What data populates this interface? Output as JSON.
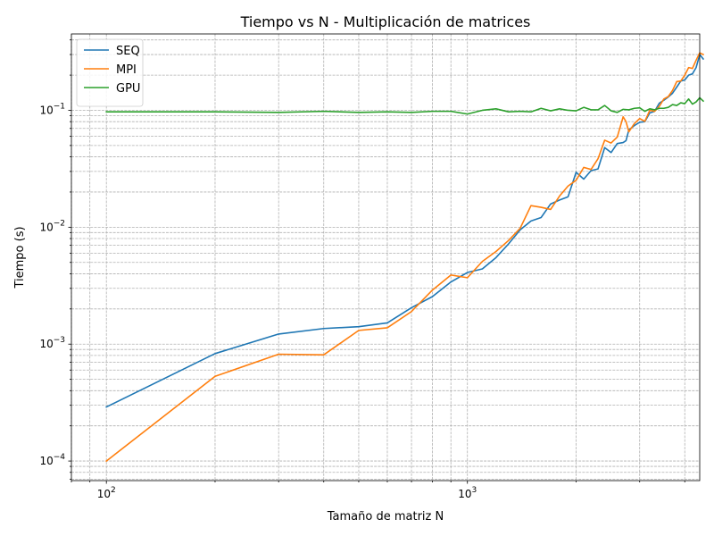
{
  "chart_data": {
    "type": "line",
    "title": "Tiempo vs N - Multiplicación de matrices",
    "xlabel": "Tamaño de matriz N",
    "ylabel": "Tiempo (s)",
    "xscale": "log",
    "yscale": "log",
    "xlim": [
      80,
      4400
    ],
    "ylim": [
      6.8e-05,
      0.45
    ],
    "grid": true,
    "grid_which": "both",
    "legend_position": "upper-left",
    "x_tick_labels": [
      {
        "value": 100,
        "base": "10",
        "exp": "2"
      },
      {
        "value": 1000,
        "base": "10",
        "exp": "3"
      }
    ],
    "y_tick_labels": [
      {
        "value": 0.0001,
        "base": "10",
        "exp": "−4"
      },
      {
        "value": 0.001,
        "base": "10",
        "exp": "−3"
      },
      {
        "value": 0.01,
        "base": "10",
        "exp": "−2"
      },
      {
        "value": 0.1,
        "base": "10",
        "exp": "−1"
      }
    ],
    "series": [
      {
        "name": "SEQ",
        "color": "#1f77b4",
        "points": [
          [
            100,
            0.00029
          ],
          [
            200,
            0.00083
          ],
          [
            300,
            0.00122
          ],
          [
            400,
            0.00136
          ],
          [
            500,
            0.00141
          ],
          [
            600,
            0.00152
          ],
          [
            700,
            0.00205
          ],
          [
            800,
            0.00255
          ],
          [
            900,
            0.0034
          ],
          [
            1000,
            0.0041
          ],
          [
            1100,
            0.0044
          ],
          [
            1200,
            0.0055
          ],
          [
            1300,
            0.0072
          ],
          [
            1400,
            0.0095
          ],
          [
            1500,
            0.0113
          ],
          [
            1600,
            0.0121
          ],
          [
            1700,
            0.0158
          ],
          [
            1800,
            0.0171
          ],
          [
            1900,
            0.0182
          ],
          [
            2000,
            0.0295
          ],
          [
            2100,
            0.0258
          ],
          [
            2200,
            0.0305
          ],
          [
            2300,
            0.0315
          ],
          [
            2400,
            0.048
          ],
          [
            2500,
            0.0435
          ],
          [
            2600,
            0.052
          ],
          [
            2700,
            0.053
          ],
          [
            2750,
            0.055
          ],
          [
            2800,
            0.068
          ],
          [
            2900,
            0.074
          ],
          [
            3000,
            0.079
          ],
          [
            3100,
            0.08
          ],
          [
            3200,
            0.095
          ],
          [
            3300,
            0.098
          ],
          [
            3400,
            0.115
          ],
          [
            3500,
            0.122
          ],
          [
            3600,
            0.13
          ],
          [
            3700,
            0.14
          ],
          [
            3800,
            0.158
          ],
          [
            3900,
            0.178
          ],
          [
            4000,
            0.182
          ],
          [
            4100,
            0.2
          ],
          [
            4200,
            0.205
          ],
          [
            4300,
            0.232
          ],
          [
            4400,
            0.3
          ],
          [
            4500,
            0.275
          ]
        ]
      },
      {
        "name": "MPI",
        "color": "#ff7f0e",
        "points": [
          [
            100,
            0.0001
          ],
          [
            200,
            0.00053
          ],
          [
            300,
            0.00082
          ],
          [
            400,
            0.00081
          ],
          [
            500,
            0.00131
          ],
          [
            600,
            0.00138
          ],
          [
            700,
            0.0019
          ],
          [
            800,
            0.0029
          ],
          [
            900,
            0.0039
          ],
          [
            1000,
            0.0037
          ],
          [
            1100,
            0.0051
          ],
          [
            1200,
            0.0062
          ],
          [
            1300,
            0.0077
          ],
          [
            1400,
            0.0098
          ],
          [
            1500,
            0.0153
          ],
          [
            1600,
            0.0148
          ],
          [
            1700,
            0.0142
          ],
          [
            1800,
            0.0185
          ],
          [
            1900,
            0.0225
          ],
          [
            2000,
            0.0252
          ],
          [
            2100,
            0.0325
          ],
          [
            2200,
            0.0312
          ],
          [
            2300,
            0.0385
          ],
          [
            2400,
            0.0555
          ],
          [
            2500,
            0.0525
          ],
          [
            2600,
            0.059
          ],
          [
            2700,
            0.088
          ],
          [
            2750,
            0.08
          ],
          [
            2800,
            0.0655
          ],
          [
            2900,
            0.077
          ],
          [
            3000,
            0.085
          ],
          [
            3100,
            0.0805
          ],
          [
            3200,
            0.1
          ],
          [
            3300,
            0.098
          ],
          [
            3400,
            0.108
          ],
          [
            3500,
            0.125
          ],
          [
            3600,
            0.131
          ],
          [
            3700,
            0.148
          ],
          [
            3800,
            0.176
          ],
          [
            3900,
            0.178
          ],
          [
            4000,
            0.2
          ],
          [
            4100,
            0.232
          ],
          [
            4200,
            0.228
          ],
          [
            4300,
            0.268
          ],
          [
            4400,
            0.31
          ],
          [
            4500,
            0.3
          ]
        ]
      },
      {
        "name": "GPU",
        "color": "#2ca02c",
        "points": [
          [
            100,
            0.097
          ],
          [
            200,
            0.097
          ],
          [
            300,
            0.096
          ],
          [
            400,
            0.098
          ],
          [
            500,
            0.096
          ],
          [
            600,
            0.097
          ],
          [
            700,
            0.096
          ],
          [
            800,
            0.098
          ],
          [
            900,
            0.098
          ],
          [
            1000,
            0.093
          ],
          [
            1100,
            0.1
          ],
          [
            1200,
            0.103
          ],
          [
            1300,
            0.097
          ],
          [
            1400,
            0.098
          ],
          [
            1500,
            0.097
          ],
          [
            1600,
            0.104
          ],
          [
            1700,
            0.099
          ],
          [
            1800,
            0.103
          ],
          [
            1900,
            0.1
          ],
          [
            2000,
            0.099
          ],
          [
            2100,
            0.106
          ],
          [
            2200,
            0.101
          ],
          [
            2300,
            0.101
          ],
          [
            2400,
            0.11
          ],
          [
            2500,
            0.099
          ],
          [
            2600,
            0.096
          ],
          [
            2700,
            0.102
          ],
          [
            2800,
            0.101
          ],
          [
            2900,
            0.104
          ],
          [
            3000,
            0.105
          ],
          [
            3100,
            0.098
          ],
          [
            3200,
            0.103
          ],
          [
            3300,
            0.101
          ],
          [
            3400,
            0.104
          ],
          [
            3500,
            0.104
          ],
          [
            3600,
            0.106
          ],
          [
            3700,
            0.112
          ],
          [
            3800,
            0.11
          ],
          [
            3900,
            0.116
          ],
          [
            4000,
            0.114
          ],
          [
            4100,
            0.125
          ],
          [
            4200,
            0.113
          ],
          [
            4300,
            0.118
          ],
          [
            4400,
            0.128
          ],
          [
            4500,
            0.12
          ]
        ]
      }
    ]
  }
}
